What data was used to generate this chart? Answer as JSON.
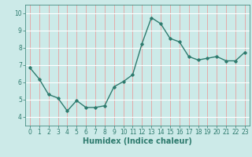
{
  "x": [
    0,
    1,
    2,
    3,
    4,
    5,
    6,
    7,
    8,
    9,
    10,
    11,
    12,
    13,
    14,
    15,
    16,
    17,
    18,
    19,
    20,
    21,
    22,
    23
  ],
  "y": [
    6.85,
    6.2,
    5.3,
    5.1,
    4.35,
    4.95,
    4.55,
    4.55,
    4.65,
    5.75,
    6.05,
    6.45,
    8.25,
    9.75,
    9.4,
    8.55,
    8.35,
    7.5,
    7.3,
    7.4,
    7.5,
    7.25,
    7.25,
    7.75
  ],
  "line_color": "#2e7b6e",
  "marker": "D",
  "marker_size": 1.8,
  "bg_color": "#cceae8",
  "grid_color_white": "#ffffff",
  "grid_color_red": "#e8a0a0",
  "xlabel": "Humidex (Indice chaleur)",
  "xlabel_fontsize": 7.0,
  "ylim": [
    3.5,
    10.5
  ],
  "xlim": [
    -0.5,
    23.5
  ],
  "yticks": [
    4,
    5,
    6,
    7,
    8,
    9,
    10
  ],
  "xticks": [
    0,
    1,
    2,
    3,
    4,
    5,
    6,
    7,
    8,
    9,
    10,
    11,
    12,
    13,
    14,
    15,
    16,
    17,
    18,
    19,
    20,
    21,
    22,
    23
  ],
  "tick_fontsize": 5.5,
  "line_width": 1.0
}
